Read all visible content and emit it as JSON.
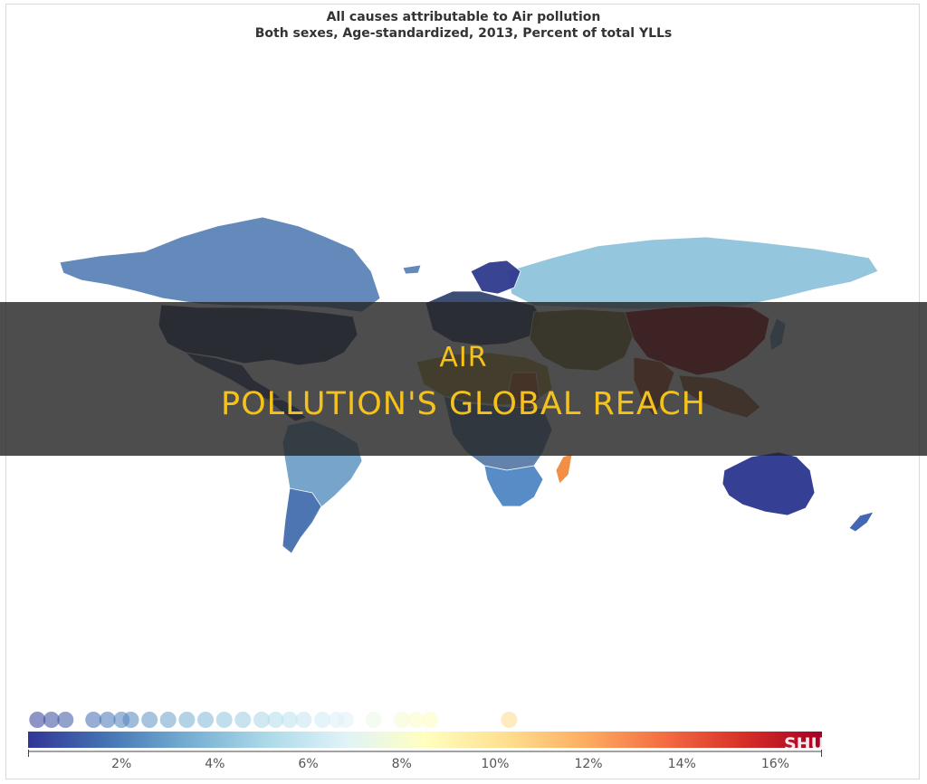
{
  "title": {
    "line1": "All causes attributable to Air pollution",
    "line2": "Both sexes, Age-standardized, 2013, Percent of total YLLs"
  },
  "banner": {
    "line1": "AIR",
    "line2": "POLLUTION'S GLOBAL REACH"
  },
  "legend": {
    "ticks": [
      "2%",
      "4%",
      "6%",
      "8%",
      "10%",
      "12%",
      "14%",
      "16%"
    ],
    "tick_values": [
      2,
      4,
      6,
      8,
      10,
      12,
      14,
      16
    ],
    "range": [
      0,
      17
    ],
    "gradient_colors": [
      "#313695",
      "#4575b4",
      "#74add1",
      "#abd9e9",
      "#e0f3f8",
      "#ffffbf",
      "#fee090",
      "#fdae61",
      "#f46d43",
      "#d73027",
      "#a50026"
    ],
    "dot_values": [
      0.2,
      0.5,
      0.8,
      1.4,
      1.7,
      2.0,
      2.2,
      2.6,
      3.0,
      3.4,
      3.8,
      4.2,
      4.6,
      5.0,
      5.3,
      5.6,
      5.9,
      6.3,
      6.6,
      6.8,
      7.4,
      8.0,
      8.3,
      8.6,
      10.3
    ]
  },
  "watermark": "SHU",
  "map": {
    "regions": [
      {
        "name": "north-america",
        "color": "#5b84b8"
      },
      {
        "name": "usa",
        "color": "#2f3f6a"
      },
      {
        "name": "greenland",
        "color": "#5b84b8"
      },
      {
        "name": "mexico",
        "color": "#3d4f82"
      },
      {
        "name": "central-america",
        "color": "#3d4f82"
      },
      {
        "name": "south-america",
        "color": "#6fa0c9"
      },
      {
        "name": "argentina",
        "color": "#4a73b0"
      },
      {
        "name": "russia",
        "color": "#8fc3dc"
      },
      {
        "name": "scandinavia",
        "color": "#2f3a8e"
      },
      {
        "name": "europe",
        "color": "#33456f"
      },
      {
        "name": "china",
        "color": "#a50f15"
      },
      {
        "name": "india",
        "color": "#c05a2b"
      },
      {
        "name": "middle-east",
        "color": "#8a7a3a"
      },
      {
        "name": "africa-north",
        "color": "#c2a24a"
      },
      {
        "name": "sudan",
        "color": "#d96a2a"
      },
      {
        "name": "africa-central",
        "color": "#5a7da8"
      },
      {
        "name": "southern-africa",
        "color": "#4f86c4"
      },
      {
        "name": "madagascar",
        "color": "#f08a3c"
      },
      {
        "name": "southeast-asia",
        "color": "#b46b3a"
      },
      {
        "name": "australia",
        "color": "#2b3690"
      },
      {
        "name": "new-zealand",
        "color": "#3a5fb0"
      },
      {
        "name": "japan",
        "color": "#6c9ccc"
      }
    ]
  }
}
